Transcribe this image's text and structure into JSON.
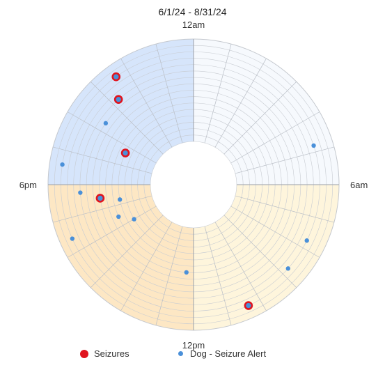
{
  "title": "6/1/24 - 8/31/24",
  "chart_data": {
    "type": "scatter",
    "subtype": "polar-24h-clock",
    "title": "6/1/24 - 8/31/24",
    "angle_axis": {
      "labels": [
        {
          "hour": 0,
          "label": "12am"
        },
        {
          "hour": 6,
          "label": "6am"
        },
        {
          "hour": 12,
          "label": "12pm"
        },
        {
          "hour": 18,
          "label": "6pm"
        }
      ],
      "range_hours": [
        0,
        24
      ],
      "direction": "clockwise",
      "zero_at": "top",
      "gridlines_every_hours": 1
    },
    "radial_axis": {
      "rings": 16,
      "range": [
        0,
        16
      ]
    },
    "quadrant_colors": [
      "#f6f9fd",
      "#fef5dc",
      "#fde7c4",
      "#d6e5fb"
    ],
    "grid": true,
    "legend_position": "bottom",
    "series": [
      {
        "name": "Seizures",
        "color": "#e0141e",
        "marker": "ring",
        "points": [
          {
            "hour": 21.62,
            "r": 14
          },
          {
            "hour": 21.24,
            "r": 11
          },
          {
            "hour": 19.66,
            "r": 5
          },
          {
            "hour": 17.45,
            "r": 8
          },
          {
            "hour": 10.37,
            "r": 14
          }
        ]
      },
      {
        "name": "Dog - Seizure Alert",
        "color": "#4a90d9",
        "marker": "dot",
        "points": [
          {
            "hour": 21.62,
            "r": 14
          },
          {
            "hour": 21.24,
            "r": 11
          },
          {
            "hour": 20.33,
            "r": 10
          },
          {
            "hour": 19.66,
            "r": 5
          },
          {
            "hour": 18.58,
            "r": 14
          },
          {
            "hour": 17.73,
            "r": 11
          },
          {
            "hour": 17.45,
            "r": 8
          },
          {
            "hour": 17.24,
            "r": 5
          },
          {
            "hour": 16.46,
            "r": 6
          },
          {
            "hour": 15.99,
            "r": 4
          },
          {
            "hour": 16.4,
            "r": 14
          },
          {
            "hour": 12.31,
            "r": 7
          },
          {
            "hour": 10.37,
            "r": 14
          },
          {
            "hour": 8.77,
            "r": 13
          },
          {
            "hour": 7.75,
            "r": 13
          },
          {
            "hour": 4.8,
            "r": 13
          }
        ]
      }
    ]
  },
  "legend": {
    "items": [
      {
        "label": "Seizures",
        "color": "#e0141e"
      },
      {
        "label": "Dog - Seizure Alert",
        "color": "#4a90d9"
      }
    ]
  }
}
